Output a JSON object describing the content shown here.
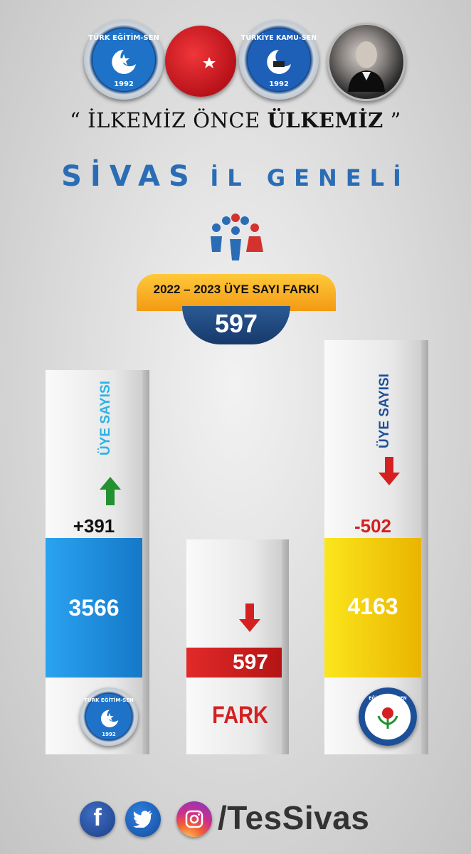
{
  "logos": {
    "left_union": {
      "name": "TÜRK EĞİTİM-SEN",
      "year": "1992"
    },
    "right_union": {
      "name": "TÜRKİYE KAMU-SEN",
      "year": "1992"
    },
    "flag_icon": "turkish-flag-icon",
    "portrait_icon": "portrait-photo"
  },
  "slogan": {
    "open": "“ İLKEMİZ ÖNCE ",
    "bold": "ÜLKEMİZ",
    "close": " ”"
  },
  "title": {
    "word1": "SİVAS",
    "word2": "İL GENELİ"
  },
  "summary": {
    "label": "2022 – 2023 ÜYE SAYI FARKI",
    "value": "597",
    "icon": "people-icon"
  },
  "columns": [
    {
      "id": "turk-egitim-sen",
      "side_label": "ÜYE SAYISI",
      "change": "+391",
      "total": "3566",
      "color": "#1a8fe0",
      "arrow": "up",
      "logo_text": "TÜRK EĞİTİM-SEN",
      "logo_year": "1992"
    },
    {
      "id": "fark",
      "value": "597",
      "label": "FARK",
      "color": "#d42020",
      "arrow": "down"
    },
    {
      "id": "egitim-bir-sen",
      "side_label": "ÜYE SAYISI",
      "change": "-502",
      "total": "4163",
      "color": "#f5d20a",
      "arrow": "down",
      "logo_text": "EĞİTİM-BİR-SEN"
    }
  ],
  "footer": {
    "handle": "/TesSivas",
    "icons": [
      "facebook-icon",
      "twitter-icon",
      "instagram-icon"
    ]
  }
}
